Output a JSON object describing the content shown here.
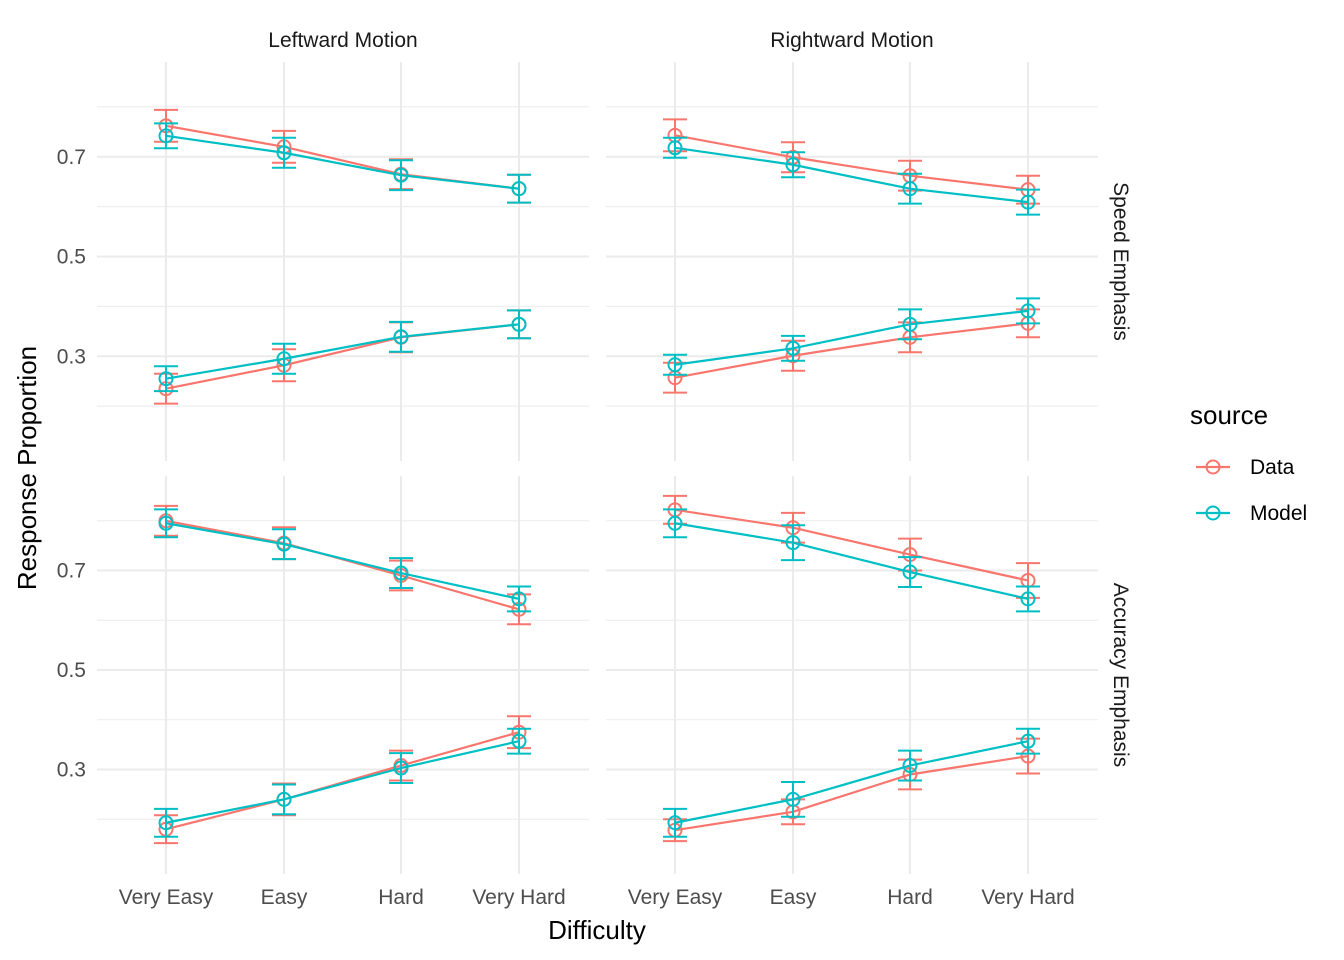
{
  "chart_data": {
    "type": "line",
    "xlabel": "Difficulty",
    "ylabel": "Response Proportion",
    "categories": [
      "Very Easy",
      "Easy",
      "Hard",
      "Very Hard"
    ],
    "y_ticks": [
      0.3,
      0.5,
      0.7
    ],
    "ylim": [
      0.09,
      0.89
    ],
    "grid": true,
    "legend": {
      "title": "source",
      "position": "right"
    },
    "colors": {
      "Data": "#F8766D",
      "Model": "#00BFC4"
    },
    "col_facets": [
      "Leftward Motion",
      "Rightward Motion"
    ],
    "row_facets": [
      "Speed Emphasis",
      "Accuracy Emphasis"
    ],
    "panels": [
      {
        "col": "Leftward Motion",
        "row": "Speed Emphasis",
        "series": [
          {
            "name": "Data",
            "group": "upper",
            "values": [
              0.762,
              0.72,
              0.665,
              0.636
            ],
            "err": [
              0.032,
              0.032,
              0.03,
              0.028
            ]
          },
          {
            "name": "Model",
            "group": "upper",
            "values": [
              0.742,
              0.708,
              0.663,
              0.636
            ],
            "err": [
              0.025,
              0.03,
              0.03,
              0.028
            ]
          },
          {
            "name": "Data",
            "group": "lower",
            "values": [
              0.235,
              0.282,
              0.338,
              0.364
            ],
            "err": [
              0.03,
              0.032,
              0.03,
              0.028
            ]
          },
          {
            "name": "Model",
            "group": "lower",
            "values": [
              0.255,
              0.295,
              0.339,
              0.364
            ],
            "err": [
              0.025,
              0.03,
              0.03,
              0.028
            ]
          }
        ]
      },
      {
        "col": "Rightward Motion",
        "row": "Speed Emphasis",
        "series": [
          {
            "name": "Data",
            "group": "upper",
            "values": [
              0.743,
              0.699,
              0.662,
              0.634
            ],
            "err": [
              0.032,
              0.03,
              0.03,
              0.028
            ]
          },
          {
            "name": "Model",
            "group": "upper",
            "values": [
              0.718,
              0.684,
              0.636,
              0.609
            ],
            "err": [
              0.02,
              0.025,
              0.03,
              0.025
            ]
          },
          {
            "name": "Data",
            "group": "lower",
            "values": [
              0.257,
              0.301,
              0.338,
              0.366
            ],
            "err": [
              0.03,
              0.03,
              0.03,
              0.028
            ]
          },
          {
            "name": "Model",
            "group": "lower",
            "values": [
              0.283,
              0.316,
              0.364,
              0.391
            ],
            "err": [
              0.02,
              0.025,
              0.03,
              0.025
            ]
          }
        ]
      },
      {
        "col": "Leftward Motion",
        "row": "Accuracy Emphasis",
        "series": [
          {
            "name": "Data",
            "group": "upper",
            "values": [
              0.8,
              0.755,
              0.69,
              0.622
            ],
            "err": [
              0.03,
              0.032,
              0.03,
              0.03
            ]
          },
          {
            "name": "Model",
            "group": "upper",
            "values": [
              0.795,
              0.753,
              0.695,
              0.643
            ],
            "err": [
              0.028,
              0.03,
              0.03,
              0.025
            ]
          },
          {
            "name": "Data",
            "group": "lower",
            "values": [
              0.18,
              0.24,
              0.308,
              0.375
            ],
            "err": [
              0.028,
              0.032,
              0.03,
              0.032
            ]
          },
          {
            "name": "Model",
            "group": "lower",
            "values": [
              0.193,
              0.24,
              0.303,
              0.357
            ],
            "err": [
              0.028,
              0.03,
              0.03,
              0.025
            ]
          }
        ]
      },
      {
        "col": "Rightward Motion",
        "row": "Accuracy Emphasis",
        "series": [
          {
            "name": "Data",
            "group": "upper",
            "values": [
              0.822,
              0.786,
              0.732,
              0.68
            ],
            "err": [
              0.028,
              0.03,
              0.032,
              0.035
            ]
          },
          {
            "name": "Model",
            "group": "upper",
            "values": [
              0.795,
              0.756,
              0.697,
              0.643
            ],
            "err": [
              0.028,
              0.035,
              0.03,
              0.025
            ]
          },
          {
            "name": "Data",
            "group": "lower",
            "values": [
              0.178,
              0.215,
              0.29,
              0.327
            ],
            "err": [
              0.022,
              0.025,
              0.03,
              0.035
            ]
          },
          {
            "name": "Model",
            "group": "lower",
            "values": [
              0.193,
              0.24,
              0.308,
              0.357
            ],
            "err": [
              0.028,
              0.035,
              0.03,
              0.025
            ]
          }
        ]
      }
    ]
  }
}
